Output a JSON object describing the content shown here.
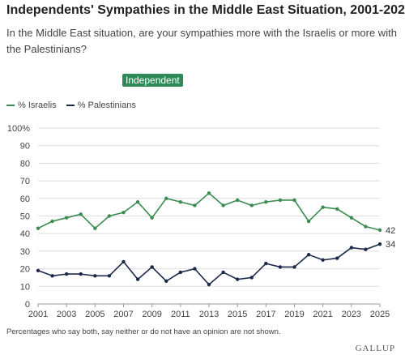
{
  "header": {
    "title": "Independents' Sympathies in the Middle East Situation, 2001-2025",
    "question": "In the Middle East situation, are your sympathies more with the Israelis or more with the Palestinians?"
  },
  "badge": {
    "label": "Independent",
    "color": "#2e8b57"
  },
  "footnote": "Percentages who say both, say neither or do not have an opinion are not shown.",
  "source": "GALLUP",
  "chart_data": {
    "type": "line",
    "x": [
      2001,
      2002,
      2003,
      2004,
      2005,
      2006,
      2007,
      2008,
      2009,
      2010,
      2011,
      2012,
      2013,
      2014,
      2015,
      2016,
      2017,
      2018,
      2019,
      2020,
      2021,
      2022,
      2023,
      2024,
      2025
    ],
    "series": [
      {
        "name": "% Israelis",
        "color": "#3a8c50",
        "values": [
          43,
          47,
          49,
          51,
          43,
          50,
          52,
          58,
          49,
          60,
          58,
          56,
          63,
          56,
          59,
          56,
          58,
          59,
          59,
          47,
          55,
          54,
          49,
          44,
          42
        ],
        "end_label": "42"
      },
      {
        "name": "% Palestinians",
        "color": "#1b2a4a",
        "values": [
          19,
          16,
          17,
          17,
          16,
          16,
          24,
          14,
          21,
          13,
          18,
          20,
          11,
          18,
          14,
          15,
          23,
          21,
          21,
          28,
          25,
          26,
          32,
          31,
          34
        ],
        "end_label": "34"
      }
    ],
    "xticks": [
      "2001",
      "2003",
      "2005",
      "2007",
      "2009",
      "2011",
      "2013",
      "2015",
      "2017",
      "2019",
      "2021",
      "2023",
      "2025"
    ],
    "yticks": [
      "0",
      "10",
      "20",
      "30",
      "40",
      "50",
      "60",
      "70",
      "80",
      "90",
      "100%"
    ],
    "ylim": [
      0,
      100
    ],
    "xlim": [
      2001,
      2025
    ],
    "grid": true,
    "legend": "top-left"
  }
}
